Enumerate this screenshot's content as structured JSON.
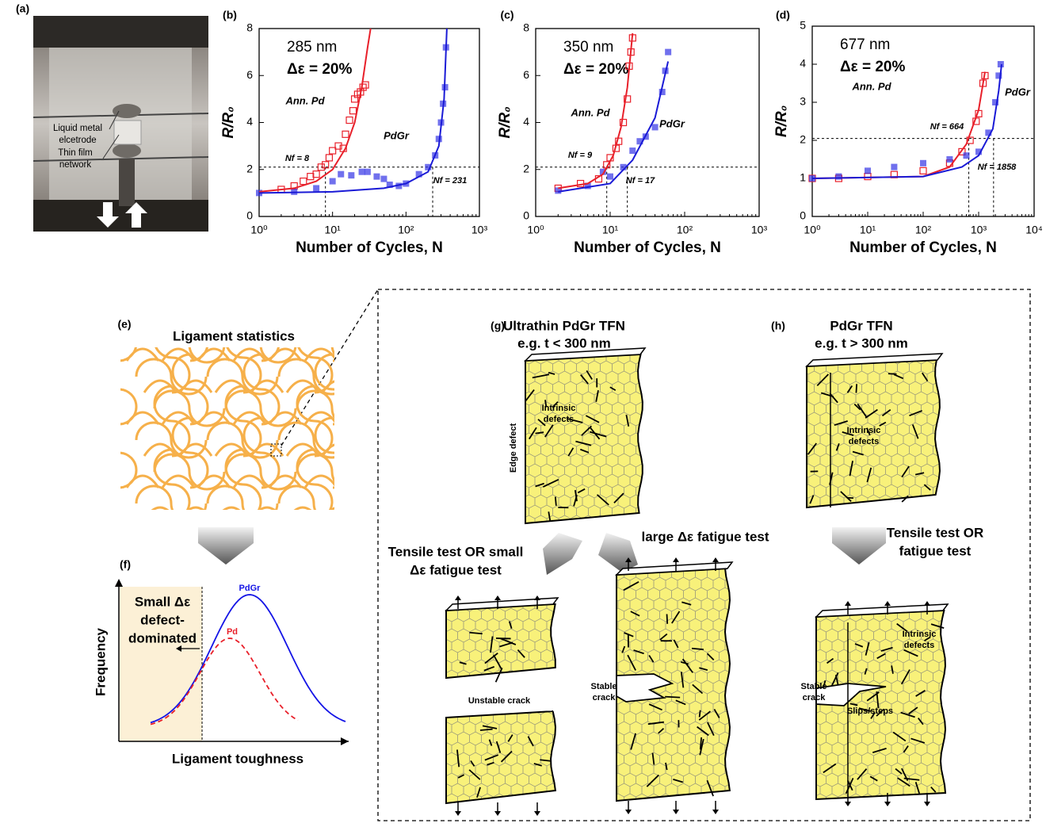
{
  "chart_data": [
    {
      "panel": "(b)",
      "type": "scatter",
      "xscale": "log",
      "xlabel": "Number of Cycles, N",
      "ylabel": "R/R₀",
      "xlim": [
        1,
        1000
      ],
      "xticks": [
        {
          "value": 1,
          "label": "10⁰"
        },
        {
          "value": 10,
          "label": "10¹"
        },
        {
          "value": 100,
          "label": "10²"
        },
        {
          "value": 1000,
          "label": "10³"
        }
      ],
      "ylim": [
        0,
        8
      ],
      "yticks": [
        0,
        2,
        4,
        6,
        8
      ],
      "annotations": [
        "285 nm",
        "Δε = 20%"
      ],
      "series": [
        {
          "name": "Ann. Pd",
          "color": "#e8202a",
          "marker": "open-square",
          "x": [
            2,
            3,
            4,
            5,
            6,
            7,
            8,
            9,
            10,
            12,
            14,
            15,
            17,
            19,
            20,
            22,
            24,
            26,
            28
          ],
          "values": [
            1.15,
            1.3,
            1.5,
            1.7,
            1.8,
            2.1,
            2.2,
            2.5,
            2.8,
            3.0,
            2.9,
            3.5,
            4.1,
            4.5,
            5.0,
            5.2,
            5.3,
            5.5,
            5.6
          ]
        },
        {
          "name": "PdGr",
          "color": "#3333e6",
          "marker": "square",
          "x": [
            1,
            3,
            6,
            10,
            13,
            18,
            25,
            30,
            40,
            50,
            60,
            80,
            100,
            150,
            200,
            250,
            280,
            300,
            320,
            340,
            350
          ],
          "values": [
            1.0,
            1.05,
            1.2,
            1.5,
            1.8,
            1.75,
            1.9,
            1.9,
            1.7,
            1.6,
            1.35,
            1.3,
            1.4,
            1.8,
            2.1,
            2.6,
            3.3,
            4.0,
            4.8,
            5.5,
            7.2
          ]
        }
      ],
      "fits": [
        {
          "color": "#e8202a",
          "x": [
            1,
            3,
            6,
            10,
            15,
            20,
            25,
            30,
            33
          ],
          "values": [
            1.05,
            1.2,
            1.5,
            2.0,
            2.9,
            4.0,
            5.5,
            7.2,
            8
          ]
        },
        {
          "color": "#1a1ad6",
          "x": [
            1,
            10,
            50,
            100,
            200,
            280,
            330,
            360
          ],
          "values": [
            1.0,
            1.05,
            1.2,
            1.4,
            1.9,
            3,
            5,
            8
          ]
        }
      ],
      "threshold": 2.1,
      "failure": [
        {
          "label": "Nf = 8",
          "x": 8
        },
        {
          "label": "Nf = 231",
          "x": 231
        }
      ]
    },
    {
      "panel": "(c)",
      "type": "scatter",
      "xscale": "log",
      "xlabel": "Number of Cycles, N",
      "ylabel": "R/R₀",
      "xlim": [
        1,
        1000
      ],
      "xticks": [
        {
          "value": 1,
          "label": "10⁰"
        },
        {
          "value": 10,
          "label": "10¹"
        },
        {
          "value": 100,
          "label": "10²"
        },
        {
          "value": 1000,
          "label": "10³"
        }
      ],
      "ylim": [
        0,
        8
      ],
      "yticks": [
        0,
        2,
        4,
        6,
        8
      ],
      "annotations": [
        "350 nm",
        "Δε = 20%"
      ],
      "series": [
        {
          "name": "Ann. Pd",
          "color": "#e8202a",
          "marker": "open-square",
          "x": [
            2,
            4,
            7,
            9,
            10,
            12,
            13,
            15,
            17,
            18,
            19,
            20
          ],
          "values": [
            1.2,
            1.4,
            1.6,
            2.2,
            2.5,
            2.9,
            3.2,
            4.0,
            5.0,
            6.4,
            7.0,
            7.6
          ]
        },
        {
          "name": "PdGr",
          "color": "#3333e6",
          "marker": "square",
          "x": [
            2,
            5,
            8,
            10,
            15,
            20,
            25,
            30,
            40,
            50,
            55,
            60
          ],
          "values": [
            1.1,
            1.3,
            1.9,
            1.7,
            2.1,
            2.8,
            3.2,
            3.4,
            3.8,
            5.3,
            6.2,
            7.0
          ]
        }
      ],
      "fits": [
        {
          "color": "#e8202a",
          "x": [
            2,
            5,
            8,
            11,
            14,
            17,
            20
          ],
          "values": [
            1.2,
            1.4,
            1.8,
            2.6,
            3.8,
            5.5,
            7.8
          ]
        },
        {
          "color": "#1a1ad6",
          "x": [
            2,
            10,
            20,
            40,
            60
          ],
          "values": [
            1.05,
            1.4,
            2.4,
            4.2,
            6.6
          ]
        }
      ],
      "threshold": 2.1,
      "failure": [
        {
          "label": "Nf = 9",
          "x": 9
        },
        {
          "label": "Nf = 17",
          "x": 17
        }
      ]
    },
    {
      "panel": "(d)",
      "type": "scatter",
      "xscale": "log",
      "xlabel": "Number of Cycles, N",
      "ylabel": "R/R₀",
      "xlim": [
        1,
        10000
      ],
      "xticks": [
        {
          "value": 1,
          "label": "10⁰"
        },
        {
          "value": 10,
          "label": "10¹"
        },
        {
          "value": 100,
          "label": "10²"
        },
        {
          "value": 1000,
          "label": "10³"
        },
        {
          "value": 10000,
          "label": "10⁴"
        }
      ],
      "ylim": [
        0,
        5
      ],
      "yticks": [
        0,
        1,
        2,
        3,
        4,
        5
      ],
      "annotations": [
        "677 nm",
        "Δε = 20%"
      ],
      "series": [
        {
          "name": "Ann. Pd",
          "color": "#e8202a",
          "marker": "open-square",
          "x": [
            1,
            3,
            10,
            30,
            100,
            300,
            500,
            700,
            900,
            1000,
            1200,
            1300
          ],
          "values": [
            1,
            1.0,
            1.05,
            1.1,
            1.2,
            1.4,
            1.7,
            2.0,
            2.5,
            2.7,
            3.5,
            3.7
          ]
        },
        {
          "name": "PdGr",
          "color": "#3333e6",
          "marker": "square",
          "x": [
            1,
            3,
            10,
            30,
            100,
            300,
            600,
            1000,
            1500,
            2000,
            2300,
            2500
          ],
          "values": [
            1,
            1.05,
            1.2,
            1.3,
            1.4,
            1.5,
            1.6,
            1.7,
            2.2,
            3.0,
            3.7,
            4.0
          ]
        }
      ],
      "fits": [
        {
          "color": "#e8202a",
          "x": [
            1,
            100,
            300,
            600,
            1000,
            1300
          ],
          "values": [
            1,
            1.05,
            1.3,
            1.9,
            2.8,
            3.8
          ]
        },
        {
          "color": "#1a1ad6",
          "x": [
            1,
            100,
            500,
            1000,
            1800,
            2300,
            2600
          ],
          "values": [
            1,
            1.05,
            1.3,
            1.6,
            2.3,
            3.3,
            4.0
          ]
        }
      ],
      "threshold": 2.05,
      "failure": [
        {
          "label": "Nf = 664",
          "x": 664
        },
        {
          "label": "Nf = 1858",
          "x": 1858
        }
      ]
    }
  ],
  "panels": {
    "a": {
      "label": "(a)",
      "callouts": [
        [
          "Liquid metal",
          "elcetrode"
        ],
        [
          "Thin film",
          "network"
        ]
      ]
    },
    "e": {
      "label": "(e)",
      "title": "Ligament statistics"
    },
    "f": {
      "label": "(f)",
      "region": [
        "Small Δε",
        "defect-",
        "dominated"
      ],
      "curves": [
        "PdGr",
        "Pd"
      ],
      "ylabel": "Frequency",
      "xlabel": "Ligament toughness"
    },
    "g": {
      "label": "(g)",
      "title": [
        "Ultrathin PdGr TFN",
        "e.g. t < 300 nm"
      ],
      "intrinsic": [
        "Intrinsic",
        "defects"
      ],
      "edge": "Edge defect",
      "test_small": [
        "Tensile test OR small",
        "Δε fatigue test"
      ],
      "test_large": "large Δε fatigue test",
      "unstable": "Unstable crack",
      "stable": [
        "Stable",
        "crack"
      ]
    },
    "h": {
      "label": "(h)",
      "title": [
        "PdGr TFN",
        "e.g. t > 300 nm"
      ],
      "intrinsic": [
        "Intrinsic",
        "defects"
      ],
      "test": [
        "Tensile test OR",
        "fatigue test"
      ],
      "intrinsic_after": [
        "Intrinsic",
        "defects"
      ],
      "stable": [
        "Stable",
        "crack"
      ],
      "slips": "Slips/steps"
    }
  }
}
